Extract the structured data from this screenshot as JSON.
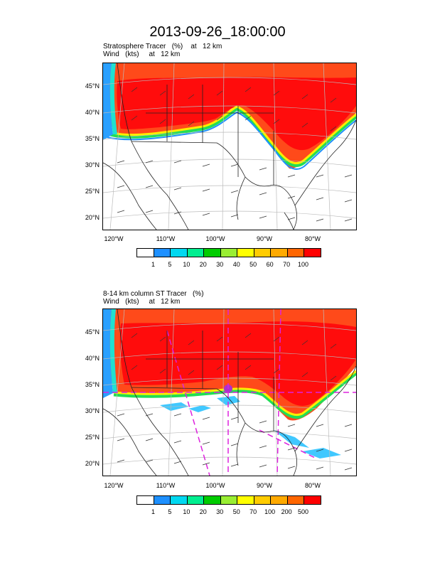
{
  "title": "2013-09-26_18:00:00",
  "colors": [
    "#ffffff",
    "#1e90ff",
    "#00d8f0",
    "#00ee90",
    "#00cc00",
    "#99ee33",
    "#ffff00",
    "#ffcc00",
    "#ffaa00",
    "#ff6600",
    "#ff0000"
  ],
  "panel1": {
    "line1": "Stratosphere Tracer   (%)    at   12 km",
    "line2": "Wind   (kts)     at   12 km",
    "colorbar_labels": [
      "1",
      "5",
      "10",
      "20",
      "30",
      "40",
      "50",
      "60",
      "70",
      "100"
    ]
  },
  "panel2": {
    "line1": "8-14 km column ST Tracer   (%)",
    "line2": "Wind   (kts)     at   12 km",
    "colorbar_labels": [
      "1",
      "5",
      "10",
      "20",
      "30",
      "50",
      "70",
      "100",
      "200",
      "500"
    ]
  },
  "lat_labels": [
    "45°N",
    "40°N",
    "35°N",
    "30°N",
    "25°N",
    "20°N"
  ],
  "lon_labels": [
    "120°W",
    "110°W",
    "100°W",
    "90°W",
    "80°W"
  ]
}
